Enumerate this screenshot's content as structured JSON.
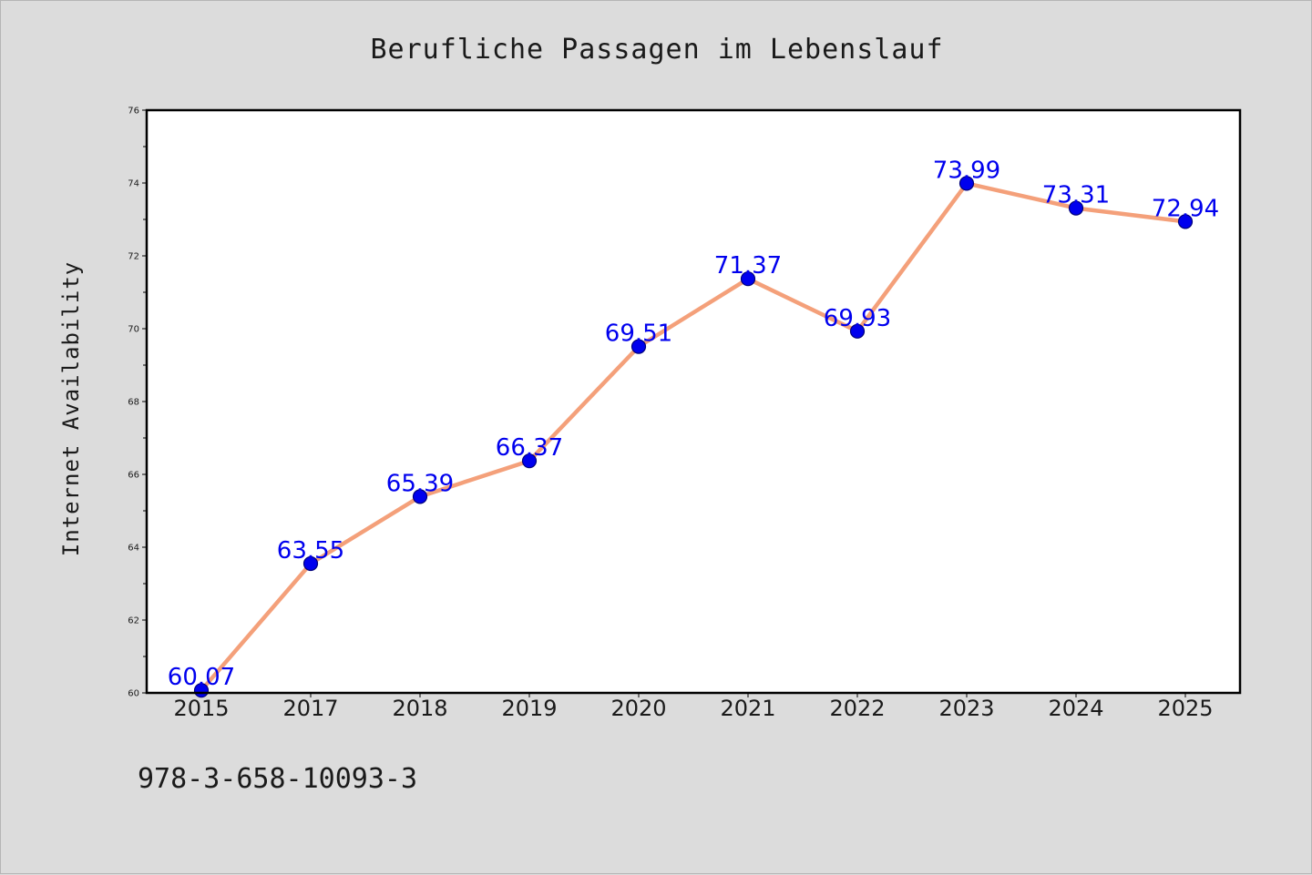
{
  "chart_data": {
    "type": "line",
    "title": "Berufliche Passagen im Lebenslauf",
    "xlabel": "",
    "ylabel": "Internet Availability",
    "categories": [
      "2015",
      "2017",
      "2018",
      "2019",
      "2020",
      "2021",
      "2022",
      "2023",
      "2024",
      "2025"
    ],
    "series": [
      {
        "values": [
          60.07,
          63.55,
          65.39,
          66.37,
          69.51,
          71.37,
          69.93,
          73.99,
          73.31,
          72.94
        ],
        "labels": [
          "60.07",
          "63.55",
          "65.39",
          "66.37",
          "69.51",
          "71.37",
          "69.93",
          "73.99",
          "73.31",
          "72.94"
        ]
      }
    ],
    "ylim": [
      60,
      76
    ],
    "yticks": [
      "60",
      "62",
      "64",
      "66",
      "68",
      "70",
      "72",
      "74",
      "76"
    ],
    "grid": false,
    "legend": "none",
    "colors": {
      "line": "#f4a07a",
      "marker": "#0000ee",
      "marker_edge": "#00007a",
      "data_label": "#0000ee",
      "plot_background": "#ffffff",
      "figure_background": "#dcdcdc"
    }
  },
  "footer": {
    "isbn": "978-3-658-10093-3"
  }
}
